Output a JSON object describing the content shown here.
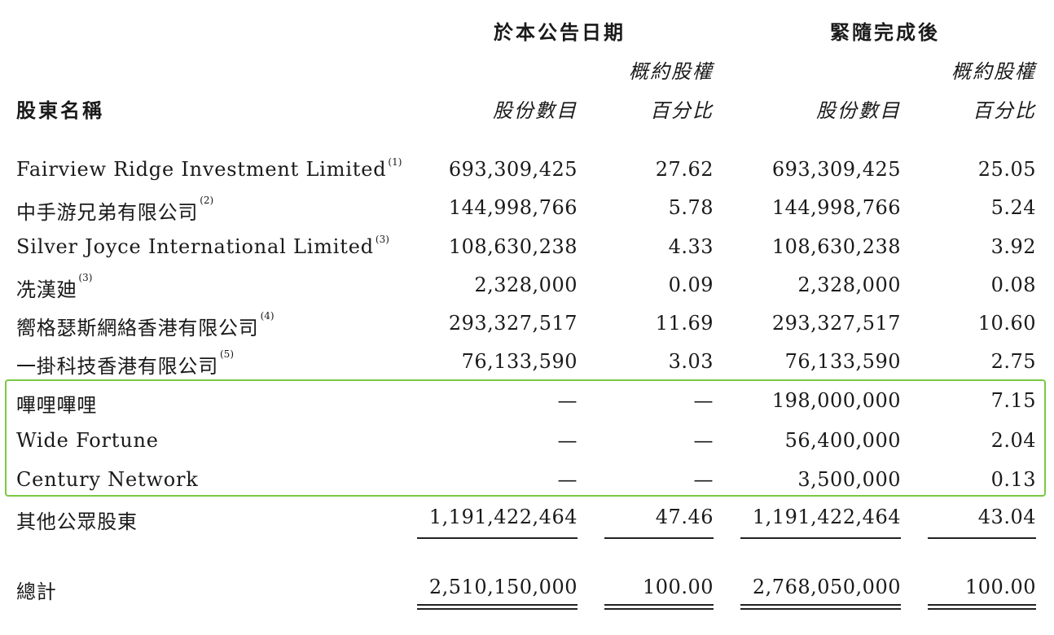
{
  "header": {
    "group_current": "於本公告日期",
    "group_after": "緊隨完成後",
    "approx_current": "概約股權",
    "approx_after": "概約股權",
    "name_col": "股東名稱",
    "shares_current": "股份數目",
    "percent_current": "百分比",
    "shares_after": "股份數目",
    "percent_after": "百分比"
  },
  "rows": [
    {
      "name": "Fairview Ridge Investment Limited",
      "note": "(1)",
      "shares_now": "693,309,425",
      "pct_now": "27.62",
      "shares_after": "693,309,425",
      "pct_after": "25.05"
    },
    {
      "name": "中手游兄弟有限公司",
      "note": "(2)",
      "shares_now": "144,998,766",
      "pct_now": "5.78",
      "shares_after": "144,998,766",
      "pct_after": "5.24"
    },
    {
      "name": "Silver Joyce International Limited",
      "note": "(3)",
      "shares_now": "108,630,238",
      "pct_now": "4.33",
      "shares_after": "108,630,238",
      "pct_after": "3.92"
    },
    {
      "name": "冼漢廸",
      "note": "(3)",
      "shares_now": "2,328,000",
      "pct_now": "0.09",
      "shares_after": "2,328,000",
      "pct_after": "0.08"
    },
    {
      "name": "嚮格瑟斯網絡香港有限公司",
      "note": "(4)",
      "shares_now": "293,327,517",
      "pct_now": "11.69",
      "shares_after": "293,327,517",
      "pct_after": "10.60"
    },
    {
      "name": "一掛科技香港有限公司",
      "note": "(5)",
      "shares_now": "76,133,590",
      "pct_now": "3.03",
      "shares_after": "76,133,590",
      "pct_after": "2.75"
    },
    {
      "name": "嗶哩嗶哩",
      "note": "",
      "shares_now": "—",
      "pct_now": "—",
      "shares_after": "198,000,000",
      "pct_after": "7.15"
    },
    {
      "name": "Wide Fortune",
      "note": "",
      "shares_now": "—",
      "pct_now": "—",
      "shares_after": "56,400,000",
      "pct_after": "2.04"
    },
    {
      "name": "Century Network",
      "note": "",
      "shares_now": "—",
      "pct_now": "—",
      "shares_after": "3,500,000",
      "pct_after": "0.13"
    },
    {
      "name": "其他公眾股東",
      "note": "",
      "shares_now": "1,191,422,464",
      "pct_now": "47.46",
      "shares_after": "1,191,422,464",
      "pct_after": "43.04"
    }
  ],
  "total": {
    "label": "總計",
    "shares_now": "2,510,150,000",
    "pct_now": "100.00",
    "shares_after": "2,768,050,000",
    "pct_after": "100.00"
  },
  "colors": {
    "highlight_border": "#7ac943",
    "text": "#1a1a1a"
  }
}
